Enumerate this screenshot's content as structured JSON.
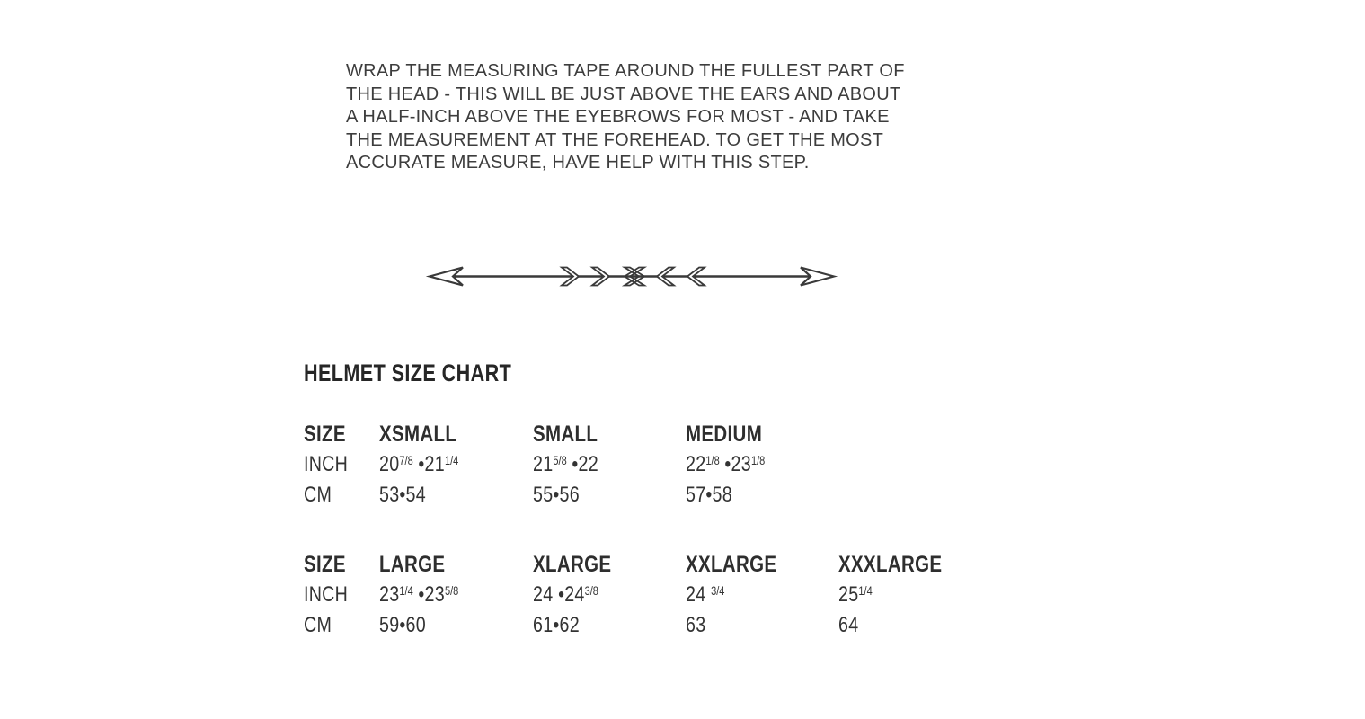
{
  "page": {
    "background": "#ffffff"
  },
  "instructions": {
    "lines": [
      "WRAP THE MEASURING TAPE AROUND THE FULLEST PART OF",
      "THE HEAD - THIS WILL BE JUST ABOVE THE EARS AND ABOUT",
      "A HALF-INCH ABOVE THE EYEBROWS FOR MOST - AND TAKE",
      "THE MEASUREMENT AT THE FOREHEAD. TO GET THE MOST",
      "ACCURATE MEASURE, HAVE HELP WITH THIS STEP."
    ]
  },
  "divider": {
    "icon": "double-ended-arrow-with-chevrons"
  },
  "size_chart": {
    "title": "HELMET SIZE CHART",
    "row_labels": {
      "size": "SIZE",
      "inch": "INCH",
      "cm": "CM"
    },
    "tables": [
      {
        "columns": [
          {
            "size": "XSMALL",
            "inch": "20{7/8} •21{1/4}",
            "cm": "53•54"
          },
          {
            "size": "SMALL",
            "inch": "21{5/8} •22",
            "cm": "55•56"
          },
          {
            "size": "MEDIUM",
            "inch": "22{1/8} •23{1/8}",
            "cm": "57•58"
          }
        ]
      },
      {
        "columns": [
          {
            "size": "LARGE",
            "inch": "23{1/4} •23{5/8}",
            "cm": "59•60"
          },
          {
            "size": "XLARGE",
            "inch": "24 •24{3/8}",
            "cm": "61•62"
          },
          {
            "size": "XXLARGE",
            "inch": "24 {3/4}",
            "cm": "63"
          },
          {
            "size": "XXXLARGE",
            "inch": "25{1/4}",
            "cm": "64"
          }
        ]
      }
    ]
  },
  "colors": {
    "body_text": "#3d3d3d",
    "table_text": "#333333",
    "heading_text": "#262626",
    "line_art": "#3a3a3a",
    "background": "#ffffff"
  }
}
